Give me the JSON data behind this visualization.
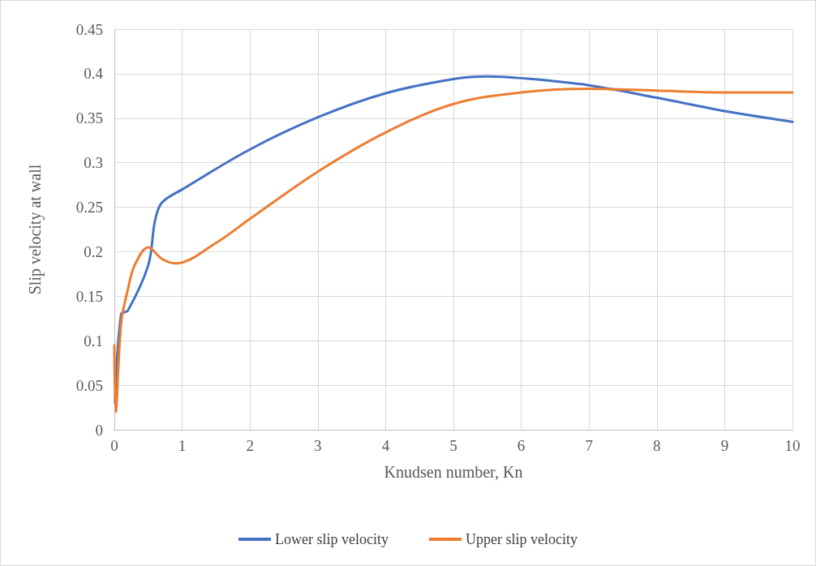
{
  "chart_data": {
    "type": "line",
    "xlabel": "Knudsen number, Kn",
    "ylabel": "Slip velocity at wall",
    "xlim": [
      0,
      10
    ],
    "xticks": [
      0,
      1,
      2,
      3,
      4,
      5,
      6,
      7,
      8,
      9,
      10
    ],
    "ylim": [
      0,
      0.45
    ],
    "yticks": [
      0,
      0.05,
      0.1,
      0.15,
      0.2,
      0.25,
      0.3,
      0.35,
      0.4,
      0.45
    ],
    "grid": true,
    "legend": "bottom",
    "marker": "none",
    "line_style": "solid",
    "series": [
      {
        "name": "Lower slip velocity",
        "color": "#4472c4",
        "x": [
          0.01,
          0.1,
          0.2,
          0.5,
          0.6,
          0.7,
          1,
          2,
          3,
          4,
          5,
          5.5,
          6,
          7,
          8,
          9,
          10
        ],
        "values": [
          0.03,
          0.13,
          0.134,
          0.185,
          0.235,
          0.255,
          0.27,
          0.315,
          0.351,
          0.378,
          0.394,
          0.397,
          0.395,
          0.387,
          0.373,
          0.358,
          0.346
        ]
      },
      {
        "name": "Upper slip velocity",
        "color": "#ed7d31",
        "x": [
          0,
          0.02,
          0.1,
          0.2,
          0.3,
          0.5,
          0.7,
          0.9,
          1.5,
          2,
          3,
          4,
          5,
          6,
          7,
          8,
          9,
          10
        ],
        "values": [
          0.095,
          0.02,
          0.12,
          0.158,
          0.185,
          0.205,
          0.192,
          0.187,
          0.21,
          0.237,
          0.29,
          0.334,
          0.366,
          0.379,
          0.383,
          0.381,
          0.379,
          0.379
        ]
      }
    ]
  }
}
